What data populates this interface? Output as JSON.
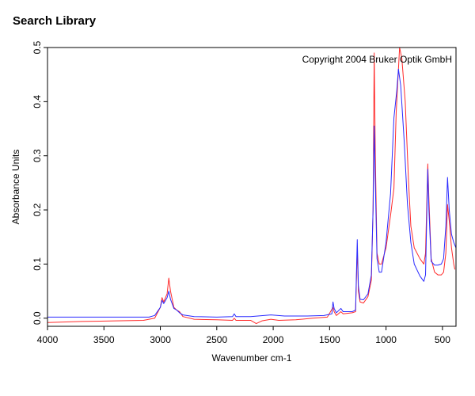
{
  "window": {
    "title": "Search Library"
  },
  "colors": {
    "sample": "#ff2a2a",
    "reference": "#2a2aff",
    "axis": "#000000",
    "background": "#ffffff"
  },
  "chart_data": {
    "type": "line",
    "title": "",
    "xlabel": "Wavenumber cm-1",
    "ylabel": "Absorbance Units",
    "annotation": "Copyright 2004 Bruker Optik GmbH",
    "xlim": [
      4000,
      380
    ],
    "ylim": [
      -0.015,
      0.5
    ],
    "x_reversed": true,
    "x_ticks": [
      4000,
      3500,
      3000,
      2500,
      2000,
      1500,
      1000,
      500
    ],
    "x_tick_labels": [
      "4000",
      "3500",
      "3000",
      "2500",
      "2000",
      "1500",
      "1000",
      "500"
    ],
    "y_ticks": [
      0.0,
      0.1,
      0.2,
      0.3,
      0.4,
      0.5
    ],
    "y_tick_labels": [
      "0.0",
      "0.1",
      "0.2",
      "0.3",
      "0.4",
      "0.5"
    ],
    "grid": false,
    "legend": "none",
    "series": [
      {
        "color": "#ff2a2a",
        "points": [
          [
            3999,
            -0.008
          ],
          [
            3700,
            -0.006
          ],
          [
            3400,
            -0.005
          ],
          [
            3150,
            -0.004
          ],
          [
            3050,
            0.0
          ],
          [
            3000,
            0.02
          ],
          [
            2985,
            0.038
          ],
          [
            2970,
            0.03
          ],
          [
            2940,
            0.045
          ],
          [
            2925,
            0.074
          ],
          [
            2910,
            0.05
          ],
          [
            2880,
            0.02
          ],
          [
            2855,
            0.015
          ],
          [
            2830,
            0.012
          ],
          [
            2800,
            0.003
          ],
          [
            2700,
            -0.002
          ],
          [
            2500,
            -0.003
          ],
          [
            2360,
            -0.004
          ],
          [
            2345,
            0.0
          ],
          [
            2330,
            -0.004
          ],
          [
            2200,
            -0.004
          ],
          [
            2150,
            -0.01
          ],
          [
            2100,
            -0.005
          ],
          [
            2020,
            -0.002
          ],
          [
            1950,
            -0.004
          ],
          [
            1800,
            -0.003
          ],
          [
            1650,
            0.0
          ],
          [
            1520,
            0.002
          ],
          [
            1470,
            0.02
          ],
          [
            1460,
            0.012
          ],
          [
            1440,
            0.005
          ],
          [
            1400,
            0.012
          ],
          [
            1380,
            0.008
          ],
          [
            1300,
            0.01
          ],
          [
            1270,
            0.012
          ],
          [
            1255,
            0.13
          ],
          [
            1245,
            0.05
          ],
          [
            1230,
            0.03
          ],
          [
            1200,
            0.028
          ],
          [
            1160,
            0.04
          ],
          [
            1130,
            0.07
          ],
          [
            1115,
            0.2
          ],
          [
            1105,
            0.49
          ],
          [
            1095,
            0.3
          ],
          [
            1080,
            0.12
          ],
          [
            1060,
            0.1
          ],
          [
            1040,
            0.1
          ],
          [
            1000,
            0.13
          ],
          [
            960,
            0.19
          ],
          [
            930,
            0.24
          ],
          [
            910,
            0.38
          ],
          [
            880,
            0.5
          ],
          [
            860,
            0.48
          ],
          [
            830,
            0.4
          ],
          [
            800,
            0.25
          ],
          [
            780,
            0.17
          ],
          [
            750,
            0.13
          ],
          [
            700,
            0.11
          ],
          [
            665,
            0.1
          ],
          [
            650,
            0.12
          ],
          [
            630,
            0.285
          ],
          [
            620,
            0.22
          ],
          [
            600,
            0.11
          ],
          [
            570,
            0.085
          ],
          [
            540,
            0.08
          ],
          [
            510,
            0.08
          ],
          [
            490,
            0.085
          ],
          [
            470,
            0.12
          ],
          [
            455,
            0.21
          ],
          [
            440,
            0.18
          ],
          [
            420,
            0.13
          ],
          [
            400,
            0.1
          ],
          [
            390,
            0.09
          ]
        ]
      },
      {
        "color": "#2a2aff",
        "points": [
          [
            3999,
            0.002
          ],
          [
            3600,
            0.002
          ],
          [
            3200,
            0.002
          ],
          [
            3100,
            0.002
          ],
          [
            3050,
            0.005
          ],
          [
            3000,
            0.02
          ],
          [
            2985,
            0.033
          ],
          [
            2970,
            0.027
          ],
          [
            2940,
            0.038
          ],
          [
            2925,
            0.05
          ],
          [
            2910,
            0.035
          ],
          [
            2880,
            0.018
          ],
          [
            2855,
            0.015
          ],
          [
            2830,
            0.01
          ],
          [
            2800,
            0.006
          ],
          [
            2700,
            0.003
          ],
          [
            2500,
            0.002
          ],
          [
            2360,
            0.003
          ],
          [
            2345,
            0.008
          ],
          [
            2330,
            0.003
          ],
          [
            2200,
            0.003
          ],
          [
            2020,
            0.006
          ],
          [
            1900,
            0.004
          ],
          [
            1700,
            0.004
          ],
          [
            1550,
            0.005
          ],
          [
            1480,
            0.008
          ],
          [
            1470,
            0.03
          ],
          [
            1460,
            0.018
          ],
          [
            1440,
            0.01
          ],
          [
            1400,
            0.018
          ],
          [
            1380,
            0.012
          ],
          [
            1300,
            0.012
          ],
          [
            1270,
            0.015
          ],
          [
            1255,
            0.145
          ],
          [
            1245,
            0.06
          ],
          [
            1230,
            0.035
          ],
          [
            1200,
            0.034
          ],
          [
            1160,
            0.045
          ],
          [
            1130,
            0.08
          ],
          [
            1115,
            0.2
          ],
          [
            1105,
            0.355
          ],
          [
            1095,
            0.25
          ],
          [
            1080,
            0.11
          ],
          [
            1060,
            0.085
          ],
          [
            1040,
            0.085
          ],
          [
            1000,
            0.14
          ],
          [
            960,
            0.23
          ],
          [
            930,
            0.37
          ],
          [
            905,
            0.42
          ],
          [
            890,
            0.46
          ],
          [
            870,
            0.43
          ],
          [
            840,
            0.33
          ],
          [
            810,
            0.21
          ],
          [
            780,
            0.14
          ],
          [
            750,
            0.1
          ],
          [
            700,
            0.078
          ],
          [
            665,
            0.068
          ],
          [
            650,
            0.08
          ],
          [
            630,
            0.275
          ],
          [
            620,
            0.2
          ],
          [
            600,
            0.105
          ],
          [
            570,
            0.098
          ],
          [
            540,
            0.098
          ],
          [
            510,
            0.1
          ],
          [
            490,
            0.11
          ],
          [
            470,
            0.17
          ],
          [
            455,
            0.26
          ],
          [
            440,
            0.2
          ],
          [
            420,
            0.155
          ],
          [
            400,
            0.14
          ],
          [
            380,
            0.13
          ]
        ]
      }
    ]
  }
}
